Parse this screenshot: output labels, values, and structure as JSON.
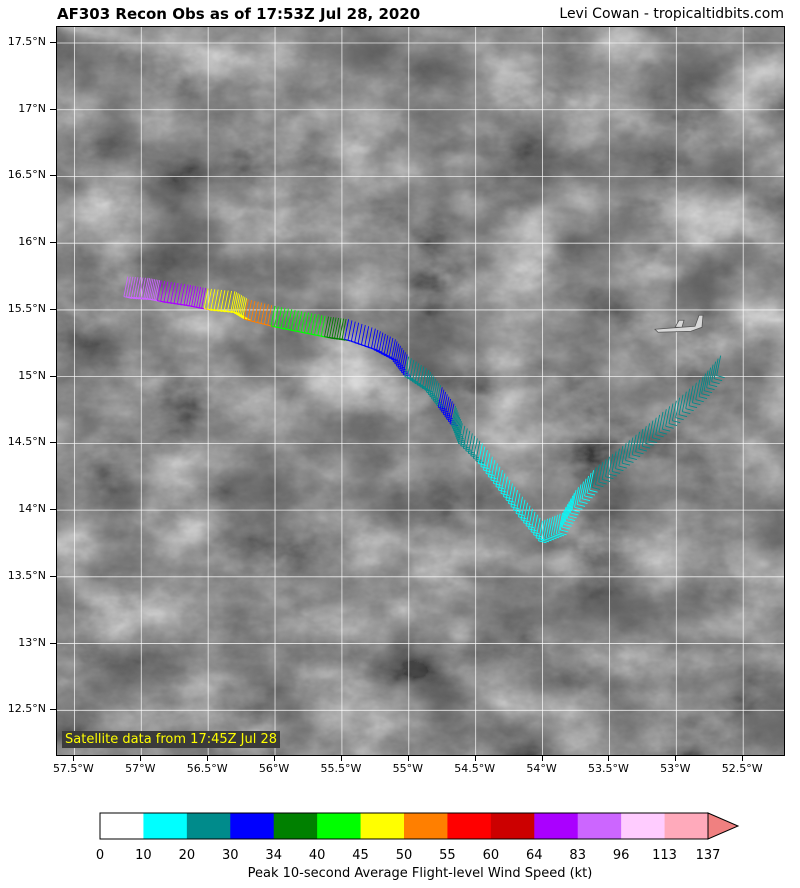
{
  "header": {
    "title": "AF303 Recon Obs as of 17:53Z Jul 28, 2020",
    "credit": "Levi Cowan - tropicaltidbits.com"
  },
  "map": {
    "satellite_label": "Satellite data from 17:45Z Jul 28",
    "lat_ticks": [
      "17.5°N",
      "17°N",
      "16.5°N",
      "16°N",
      "15.5°N",
      "15°N",
      "14.5°N",
      "14°N",
      "13.5°N",
      "13°N",
      "12.5°N"
    ],
    "lon_ticks": [
      "57.5°W",
      "57°W",
      "56.5°W",
      "56°W",
      "55.5°W",
      "55°W",
      "54.5°W",
      "54°W",
      "53.5°W",
      "53°W",
      "52.5°W"
    ],
    "lat_range": [
      12.15,
      17.62
    ],
    "lon_range": [
      57.63,
      52.18
    ],
    "aircraft_icon": "airplane-icon",
    "flight_track": [
      {
        "lon": -57.1,
        "lat": 15.75,
        "wind_class": 11
      },
      {
        "lon": -56.95,
        "lat": 15.74,
        "wind_class": 11
      },
      {
        "lon": -56.85,
        "lat": 15.72,
        "wind_class": 10
      },
      {
        "lon": -56.65,
        "lat": 15.69,
        "wind_class": 10
      },
      {
        "lon": -56.5,
        "lat": 15.66,
        "wind_class": 6
      },
      {
        "lon": -56.3,
        "lat": 15.64,
        "wind_class": 6
      },
      {
        "lon": -56.2,
        "lat": 15.58,
        "wind_class": 7
      },
      {
        "lon": -56.0,
        "lat": 15.53,
        "wind_class": 5
      },
      {
        "lon": -55.8,
        "lat": 15.49,
        "wind_class": 5
      },
      {
        "lon": -55.6,
        "lat": 15.45,
        "wind_class": 4
      },
      {
        "lon": -55.45,
        "lat": 15.43,
        "wind_class": 3
      },
      {
        "lon": -55.25,
        "lat": 15.36,
        "wind_class": 3
      },
      {
        "lon": -55.1,
        "lat": 15.28,
        "wind_class": 3
      },
      {
        "lon": -55.0,
        "lat": 15.15,
        "wind_class": 2
      },
      {
        "lon": -54.85,
        "lat": 15.05,
        "wind_class": 2
      },
      {
        "lon": -54.75,
        "lat": 14.92,
        "wind_class": 3
      },
      {
        "lon": -54.65,
        "lat": 14.78,
        "wind_class": 2
      },
      {
        "lon": -54.6,
        "lat": 14.65,
        "wind_class": 2
      },
      {
        "lon": -54.45,
        "lat": 14.5,
        "wind_class": 1
      },
      {
        "lon": -54.3,
        "lat": 14.3,
        "wind_class": 1
      },
      {
        "lon": -54.15,
        "lat": 14.1,
        "wind_class": 1
      },
      {
        "lon": -54.0,
        "lat": 13.92,
        "wind_class": 1
      },
      {
        "lon": -53.85,
        "lat": 13.98,
        "wind_class": 1
      },
      {
        "lon": -53.75,
        "lat": 14.15,
        "wind_class": 1
      },
      {
        "lon": -53.6,
        "lat": 14.32,
        "wind_class": 2
      },
      {
        "lon": -53.4,
        "lat": 14.48,
        "wind_class": 2
      },
      {
        "lon": -53.2,
        "lat": 14.65,
        "wind_class": 2
      },
      {
        "lon": -53.0,
        "lat": 14.82,
        "wind_class": 2
      },
      {
        "lon": -52.8,
        "lat": 15.0,
        "wind_class": 2
      },
      {
        "lon": -52.65,
        "lat": 15.18,
        "wind_class": 2
      }
    ],
    "aircraft_position": {
      "lon": -52.95,
      "lat": 15.37
    }
  },
  "colorbar": {
    "label": "Peak 10-second Average Flight-level Wind Speed (kt)",
    "ticks": [
      "0",
      "10",
      "20",
      "30",
      "34",
      "40",
      "45",
      "50",
      "55",
      "60",
      "64",
      "83",
      "96",
      "113",
      "137"
    ],
    "colors": [
      "#ffffff",
      "#00ffff",
      "#008b8b",
      "#0000ff",
      "#008000",
      "#00ff00",
      "#ffff00",
      "#ff7f00",
      "#ff0000",
      "#cc0000",
      "#aa00ff",
      "#cc66ff",
      "#ffccff",
      "#ffaabb"
    ],
    "extend_color": "#f08080"
  }
}
